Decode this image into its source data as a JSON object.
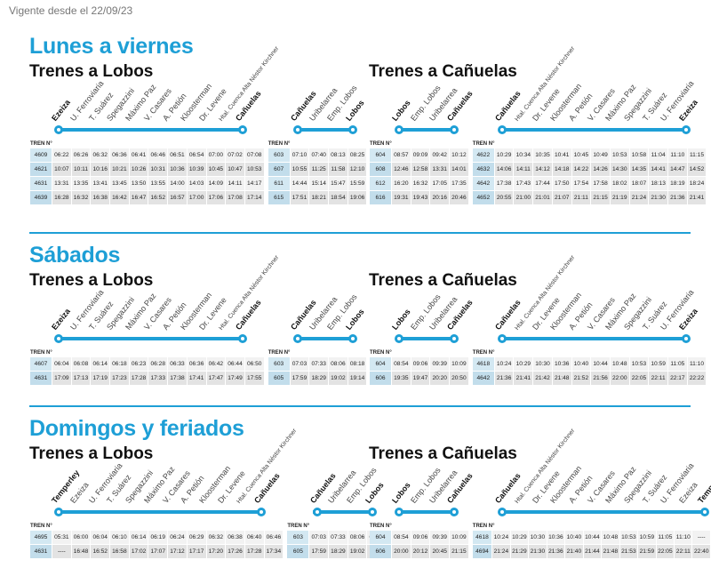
{
  "vigencia": "Vigente desde el 22/09/23",
  "tren_label": "TREN N°",
  "sections": [
    {
      "title": "Lunes a viernes",
      "left": {
        "title": "Trenes a Lobos",
        "stations": [
          "Ezeiza",
          "U. Ferroviaria",
          "T. Suárez",
          "Spegazzini",
          "Máximo Paz",
          "V. Casares",
          "A. Petión",
          "Kloosterman",
          "Dr. Levene",
          "Htal. Cuenca Alta Néstor Kirchner",
          "Cañuelas"
        ],
        "rows": [
          [
            "4609",
            "06:22",
            "06:26",
            "06:32",
            "06:36",
            "06:41",
            "06:46",
            "06:51",
            "06:54",
            "07:00",
            "07:02",
            "07:08"
          ],
          [
            "4621",
            "10:07",
            "10:11",
            "10:16",
            "10:21",
            "10:26",
            "10:31",
            "10:36",
            "10:39",
            "10:45",
            "10:47",
            "10:53"
          ],
          [
            "4631",
            "13:31",
            "13:35",
            "13:41",
            "13:45",
            "13:50",
            "13:55",
            "14:00",
            "14:03",
            "14:09",
            "14:11",
            "14:17"
          ],
          [
            "4639",
            "16:28",
            "16:32",
            "16:38",
            "16:42",
            "16:47",
            "16:52",
            "16:57",
            "17:00",
            "17:06",
            "17:08",
            "17:14"
          ]
        ],
        "conn_stations": [
          "Cañuelas",
          "Uribelarrea",
          "Emp. Lobos",
          "Lobos"
        ],
        "conn_rows": [
          [
            "603",
            "07:10",
            "07:40",
            "08:13",
            "08:25"
          ],
          [
            "607",
            "10:55",
            "11:25",
            "11:58",
            "12:10"
          ],
          [
            "611",
            "14:44",
            "15:14",
            "15:47",
            "15:59"
          ],
          [
            "615",
            "17:51",
            "18:21",
            "18:54",
            "19:06"
          ]
        ]
      },
      "right": {
        "title": "Trenes a Cañuelas",
        "pre_stations": [
          "Lobos",
          "Emp. Lobos",
          "Uribelarrea",
          "Cañuelas"
        ],
        "pre_rows": [
          [
            "604",
            "08:57",
            "09:09",
            "09:42",
            "10:12"
          ],
          [
            "608",
            "12:46",
            "12:58",
            "13:31",
            "14:01"
          ],
          [
            "612",
            "16:20",
            "16:32",
            "17:05",
            "17:35"
          ],
          [
            "616",
            "19:31",
            "19:43",
            "20:16",
            "20:46"
          ]
        ],
        "stations": [
          "Cañuelas",
          "Htal. Cuenca Alta Néstor Kirchner",
          "Dr. Levene",
          "Kloosterman",
          "A. Petión",
          "V. Casares",
          "Máximo Paz",
          "Spegazzini",
          "T. Suárez",
          "U. Ferroviaria",
          "Ezeiza"
        ],
        "rows": [
          [
            "4622",
            "10:29",
            "10:34",
            "10:35",
            "10:41",
            "10:45",
            "10:49",
            "10:53",
            "10:58",
            "11:04",
            "11:10",
            "11:15"
          ],
          [
            "4632",
            "14:06",
            "14:11",
            "14:12",
            "14:18",
            "14:22",
            "14:26",
            "14:30",
            "14:35",
            "14:41",
            "14:47",
            "14:52"
          ],
          [
            "4642",
            "17:38",
            "17:43",
            "17:44",
            "17:50",
            "17:54",
            "17:58",
            "18:02",
            "18:07",
            "18:13",
            "18:19",
            "18:24"
          ],
          [
            "4652",
            "20:55",
            "21:00",
            "21:01",
            "21:07",
            "21:11",
            "21:15",
            "21:19",
            "21:24",
            "21:30",
            "21:36",
            "21:41"
          ]
        ]
      }
    },
    {
      "title": "Sábados",
      "left": {
        "title": "Trenes a Lobos",
        "stations": [
          "Ezeiza",
          "U. Ferroviaria",
          "T. Suárez",
          "Spegazzini",
          "Máximo Paz",
          "V. Casares",
          "A. Petión",
          "Kloosterman",
          "Dr. Levene",
          "Htal. Cuenca Alta Néstor Kirchner",
          "Cañuelas"
        ],
        "rows": [
          [
            "4607",
            "06:04",
            "06:08",
            "06:14",
            "06:18",
            "06:23",
            "06:28",
            "06:33",
            "06:36",
            "06:42",
            "06:44",
            "06:50"
          ],
          [
            "4631",
            "17:09",
            "17:13",
            "17:19",
            "17:23",
            "17:28",
            "17:33",
            "17:38",
            "17:41",
            "17:47",
            "17:49",
            "17:55"
          ]
        ],
        "conn_stations": [
          "Cañuelas",
          "Uribelarrea",
          "Emp. Lobos",
          "Lobos"
        ],
        "conn_rows": [
          [
            "603",
            "07:03",
            "07:33",
            "08:06",
            "08:18"
          ],
          [
            "605",
            "17:59",
            "18:29",
            "19:02",
            "19:14"
          ]
        ]
      },
      "right": {
        "title": "Trenes a Cañuelas",
        "pre_stations": [
          "Lobos",
          "Emp. Lobos",
          "Uribelarrea",
          "Cañuelas"
        ],
        "pre_rows": [
          [
            "604",
            "08:54",
            "09:06",
            "09:39",
            "10:09"
          ],
          [
            "606",
            "19:35",
            "19:47",
            "20:20",
            "20:50"
          ]
        ],
        "stations": [
          "Cañuelas",
          "Htal. Cuenca Alta Néstor Kirchner",
          "Dr. Levene",
          "Kloosterman",
          "A. Petión",
          "V. Casares",
          "Máximo Paz",
          "Spegazzini",
          "T. Suárez",
          "U. Ferroviaria",
          "Ezeiza"
        ],
        "rows": [
          [
            "4618",
            "10:24",
            "10:29",
            "10:30",
            "10:36",
            "10:40",
            "10:44",
            "10:48",
            "10:53",
            "10:59",
            "11:05",
            "11:10"
          ],
          [
            "4642",
            "21:36",
            "21:41",
            "21:42",
            "21:48",
            "21:52",
            "21:56",
            "22:00",
            "22:05",
            "22:11",
            "22:17",
            "22:22"
          ]
        ]
      }
    },
    {
      "title": "Domingos y feriados",
      "left": {
        "title": "Trenes a Lobos",
        "stations": [
          "Temperley",
          "Ezeiza",
          "U. Ferroviaria",
          "T. Suárez",
          "Spegazzini",
          "Máximo Paz",
          "V. Casares",
          "A. Petión",
          "Kloosterman",
          "Dr. Levene",
          "Htal. Cuenca Alta Néstor Kirchner",
          "Cañuelas"
        ],
        "rows": [
          [
            "4695",
            "05:31",
            "06:00",
            "06:04",
            "06:10",
            "06:14",
            "06:19",
            "06:24",
            "06:29",
            "06:32",
            "06:38",
            "06:40",
            "06:46"
          ],
          [
            "4631",
            "----",
            "16:48",
            "16:52",
            "16:58",
            "17:02",
            "17:07",
            "17:12",
            "17:17",
            "17:20",
            "17:26",
            "17:28",
            "17:34"
          ]
        ],
        "conn_stations": [
          "Cañuelas",
          "Uribelarrea",
          "Emp. Lobos",
          "Lobos"
        ],
        "conn_rows": [
          [
            "603",
            "07:03",
            "07:33",
            "08:06",
            "08:18"
          ],
          [
            "605",
            "17:59",
            "18:29",
            "19:02",
            "19:14"
          ]
        ]
      },
      "right": {
        "title": "Trenes a Cañuelas",
        "pre_stations": [
          "Lobos",
          "Emp. Lobos",
          "Uribelarrea",
          "Cañuelas"
        ],
        "pre_rows": [
          [
            "604",
            "08:54",
            "09:06",
            "09:39",
            "10:09"
          ],
          [
            "606",
            "20:00",
            "20:12",
            "20:45",
            "21:15"
          ]
        ],
        "stations": [
          "Cañuelas",
          "Htal. Cuenca Alta Néstor Kirchner",
          "Dr. Levene",
          "Kloosterman",
          "A. Petión",
          "V. Casares",
          "Máximo Paz",
          "Spegazzini",
          "T. Suárez",
          "U. Ferroviaria",
          "Ezeiza",
          "Temperley"
        ],
        "rows": [
          [
            "4618",
            "10:24",
            "10:29",
            "10:30",
            "10:36",
            "10:40",
            "10:44",
            "10:48",
            "10:53",
            "10:59",
            "11:05",
            "11:10",
            "----"
          ],
          [
            "4694",
            "21:24",
            "21:29",
            "21:30",
            "21:36",
            "21:40",
            "21:44",
            "21:48",
            "21:53",
            "21:59",
            "22:05",
            "22:11",
            "22:40"
          ]
        ]
      }
    }
  ]
}
